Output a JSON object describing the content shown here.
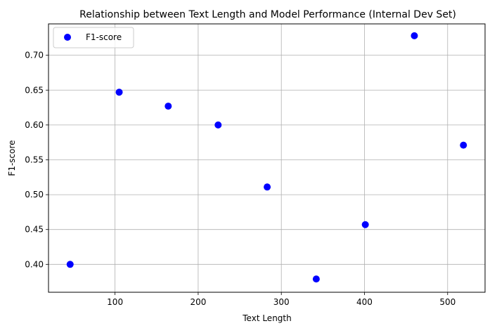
{
  "chart_data": {
    "type": "scatter",
    "title": "Relationship between Text Length and Model Performance (Internal Dev Set)",
    "xlabel": "Text Length",
    "ylabel": "F1-score",
    "xlim": [
      20,
      545
    ],
    "ylim": [
      0.36,
      0.745
    ],
    "xticks": [
      100,
      200,
      300,
      400,
      500
    ],
    "yticks": [
      0.4,
      0.45,
      0.5,
      0.55,
      0.6,
      0.65,
      0.7
    ],
    "grid": true,
    "legend": "upper-left",
    "series": [
      {
        "name": "F1-score",
        "color": "#0000ff",
        "x": [
          46,
          105,
          164,
          224,
          283,
          342,
          401,
          460,
          519
        ],
        "y": [
          0.4,
          0.647,
          0.627,
          0.6,
          0.511,
          0.379,
          0.457,
          0.728,
          0.571
        ]
      }
    ]
  }
}
